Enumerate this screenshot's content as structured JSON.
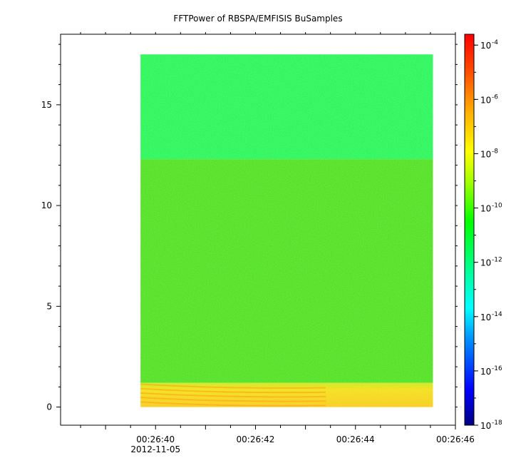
{
  "chart_data": {
    "type": "heatmap",
    "title": "FFTPower of RBSPA/EMFISIS  BuSamples",
    "xlabel": "",
    "ylabel": "",
    "x_ticks": [
      {
        "label": "00:26:40",
        "sublabel": "2012-11-05",
        "seconds": 40
      },
      {
        "label": "00:26:42",
        "sublabel": "",
        "seconds": 42
      },
      {
        "label": "00:26:44",
        "sublabel": "",
        "seconds": 44
      },
      {
        "label": "00:26:46",
        "sublabel": "",
        "seconds": 46
      }
    ],
    "xlim_seconds": [
      38.1,
      46.0
    ],
    "data_x_range_seconds": [
      39.7,
      45.55
    ],
    "y_ticks": [
      0,
      5,
      10,
      15
    ],
    "ylim": [
      -0.9,
      18.5
    ],
    "data_y_range": [
      0,
      17.5
    ],
    "colorbar": {
      "scale": "log",
      "range_exponent": [
        -18,
        -3.6
      ],
      "tick_base": "10",
      "tick_exponents": [
        "-4",
        "-6",
        "-8",
        "-10",
        "-12",
        "-14",
        "-16",
        "-18"
      ]
    },
    "bands": [
      {
        "y_range": [
          12.3,
          17.5
        ],
        "level_exponent": -11.3
      },
      {
        "y_range": [
          1.2,
          12.3
        ],
        "level_exponent": -10.1
      },
      {
        "y_range": [
          0,
          1.2
        ],
        "level_exponent": -8.4
      }
    ],
    "colors": {
      "upper_band": "#12f560",
      "middle_band": "#3dde22",
      "low_band": "#f0d81a",
      "low_band_strong": "#ff8c00",
      "colormap": [
        "#000080",
        "#0000ff",
        "#00a0ff",
        "#00ffff",
        "#00ff80",
        "#00ff00",
        "#80ff00",
        "#ffff00",
        "#ffa000",
        "#ff4000",
        "#ff0000"
      ]
    }
  }
}
